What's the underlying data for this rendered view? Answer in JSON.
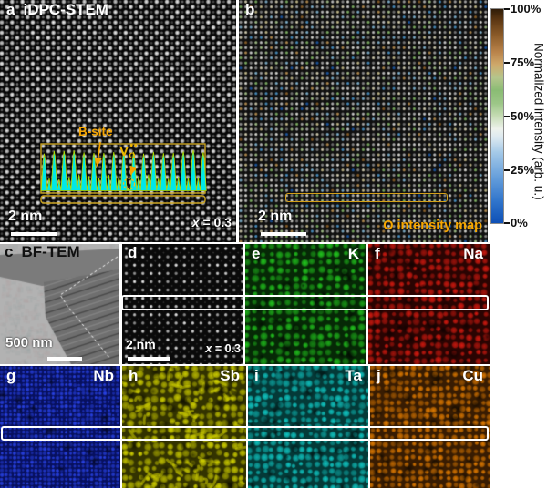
{
  "panels": {
    "a": {
      "tag": "a",
      "title": "iDPC-STEM",
      "scalebar": "2 nm",
      "comp_var": "x",
      "comp_val": "= 0.3",
      "b_site_label": "B-site",
      "vacancy": {
        "v": "V",
        "sub": "O",
        "dots": "••"
      }
    },
    "b": {
      "tag": "b",
      "scalebar": "2 nm",
      "caption": "O intensity map"
    },
    "c": {
      "tag": "c",
      "title": "BF-TEM",
      "scalebar": "500 nm"
    },
    "d": {
      "tag": "d",
      "scalebar": "2 nm",
      "comp_var": "x",
      "comp_val": "= 0.3"
    },
    "e": {
      "tag": "e",
      "element": "K"
    },
    "f": {
      "tag": "f",
      "element": "Na"
    },
    "g": {
      "tag": "g",
      "element": "Nb"
    },
    "h": {
      "tag": "h",
      "element": "Sb"
    },
    "i": {
      "tag": "i",
      "element": "Ta"
    },
    "j": {
      "tag": "j",
      "element": "Cu"
    }
  },
  "colorbar": {
    "title": "Normalized intensity (arb. u.)",
    "ticks": [
      "100%",
      "75%",
      "50%",
      "25%",
      "0%"
    ],
    "gradient": [
      {
        "pct": 0,
        "c": "#0e50b6"
      },
      {
        "pct": 10,
        "c": "#2f74cb"
      },
      {
        "pct": 22,
        "c": "#69a1dc"
      },
      {
        "pct": 33,
        "c": "#a4c9e8"
      },
      {
        "pct": 40,
        "c": "#dce9f0"
      },
      {
        "pct": 44,
        "c": "#eef2ec"
      },
      {
        "pct": 50,
        "c": "#c6dcb4"
      },
      {
        "pct": 56,
        "c": "#9cc687"
      },
      {
        "pct": 62,
        "c": "#8abc74"
      },
      {
        "pct": 68,
        "c": "#b5c58c"
      },
      {
        "pct": 74,
        "c": "#cfa96b"
      },
      {
        "pct": 80,
        "c": "#b9834a"
      },
      {
        "pct": 88,
        "c": "#8a5a28"
      },
      {
        "pct": 95,
        "c": "#5c3713"
      },
      {
        "pct": 100,
        "c": "#2f1c08"
      }
    ]
  },
  "colors": {
    "annotation_orange": "#f5a400",
    "profile_cyan": "#00e8e8",
    "o_map_palette": [
      {
        "c": "#f5f5ef",
        "w": 18
      },
      {
        "c": "#e9e3c4",
        "w": 14
      },
      {
        "c": "#d9cf9a",
        "w": 10
      },
      {
        "c": "#b5d598",
        "w": 15
      },
      {
        "c": "#8cc46e",
        "w": 9
      },
      {
        "c": "#8ec6e6",
        "w": 14
      },
      {
        "c": "#51a0d8",
        "w": 7
      },
      {
        "c": "#1e62b8",
        "w": 3
      },
      {
        "c": "#c99c58",
        "w": 7
      },
      {
        "c": "#9a6a2c",
        "w": 3
      }
    ],
    "elements": {
      "e": {
        "bright": "#22c81e",
        "dark": "#062806"
      },
      "f": {
        "bright": "#d81a10",
        "dark": "#2a0402"
      },
      "g": {
        "bright": "#2b46f0",
        "dark": "#071060"
      },
      "h": {
        "bright": "#d4d400",
        "dark": "#333300"
      },
      "i": {
        "bright": "#10c8c4",
        "dark": "#043a38"
      },
      "j": {
        "bright": "#e67e00",
        "dark": "#381c02"
      }
    }
  }
}
